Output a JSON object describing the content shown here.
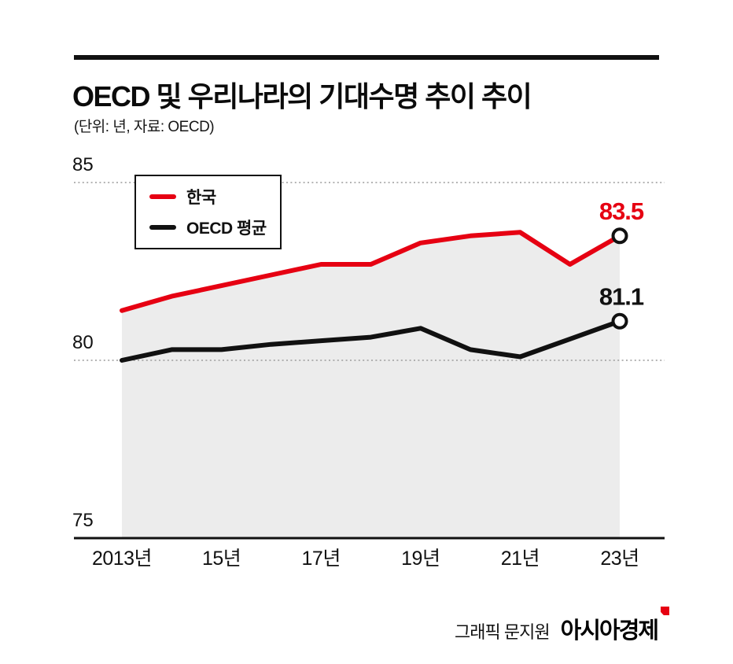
{
  "header": {
    "title": "OECD 및 우리나라의 기대수명 추이 추이",
    "subtitle": "(단위: 년, 자료: OECD)"
  },
  "footer": {
    "credit": "그래픽 문지원",
    "brand": "아시아경제"
  },
  "colors": {
    "korea_red": "#e60012",
    "oecd_black": "#111111",
    "area_fill": "#ececec",
    "grid": "#9b9b9b",
    "axis": "#111111",
    "marker_stroke": "#111111",
    "marker_fill": "#ffffff"
  },
  "chart_data": {
    "type": "line",
    "title": "OECD 및 우리나라의 기대수명 추이 추이",
    "unit_note": "(단위: 년, 자료: OECD)",
    "x": [
      2013,
      2014,
      2015,
      2016,
      2017,
      2018,
      2019,
      2020,
      2021,
      2022,
      2023
    ],
    "x_tick_values": [
      2013,
      2015,
      2017,
      2019,
      2021,
      2023
    ],
    "x_tick_labels": [
      "2013년",
      "15년",
      "17년",
      "19년",
      "21년",
      "23년"
    ],
    "ylim": [
      75,
      85
    ],
    "y_ticks": [
      85,
      80,
      75
    ],
    "gridline_values": [
      85,
      80
    ],
    "grid_style": "dotted",
    "legend_position": "top-left",
    "series": [
      {
        "name": "한국",
        "color": "#e60012",
        "values": [
          81.4,
          81.8,
          82.1,
          82.4,
          82.7,
          82.7,
          83.3,
          83.5,
          83.6,
          82.7,
          83.5
        ],
        "end_label": "83.5",
        "area_fill": true
      },
      {
        "name": "OECD 평균",
        "color": "#111111",
        "values": [
          80.0,
          80.3,
          80.3,
          80.45,
          80.55,
          80.65,
          80.9,
          80.3,
          80.1,
          80.6,
          81.1
        ],
        "end_label": "81.1",
        "area_fill": false
      }
    ]
  }
}
